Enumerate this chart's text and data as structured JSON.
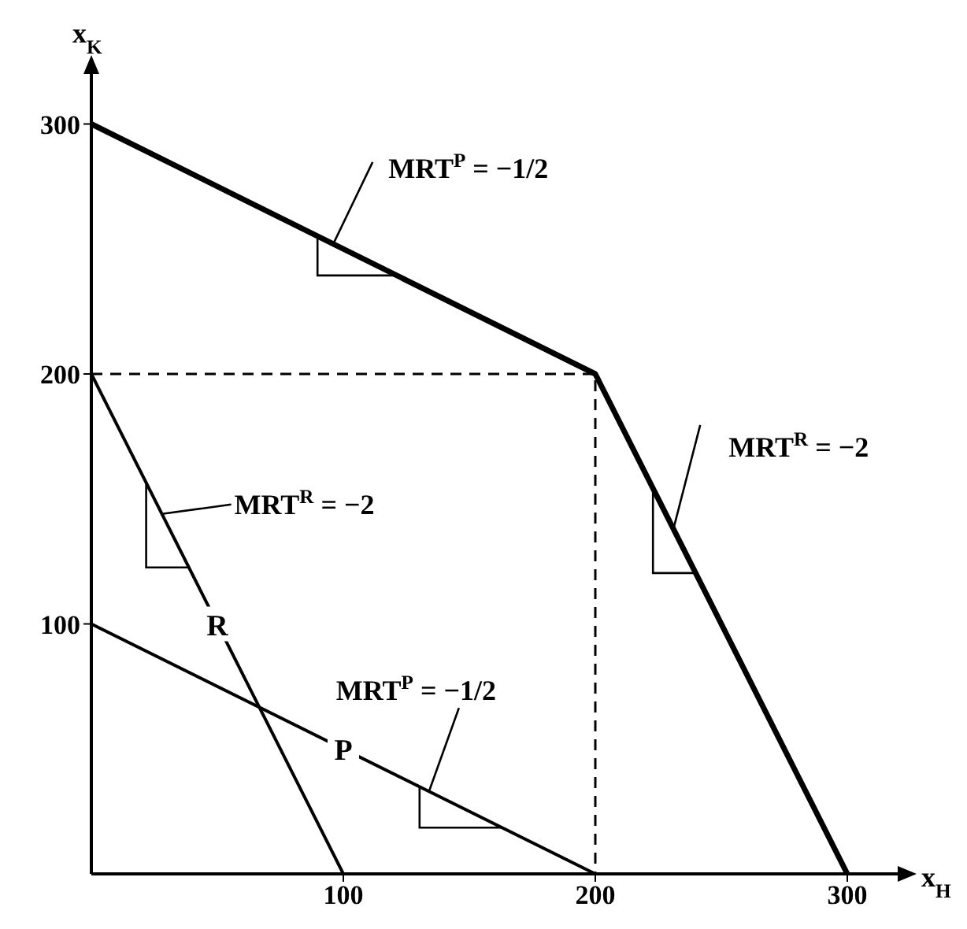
{
  "chart_data": {
    "type": "line",
    "xlabel": "x$_{H}$",
    "ylabel": "x$_{K}$",
    "xlim": [
      0,
      320
    ],
    "ylim": [
      0,
      320
    ],
    "xticks": [
      100,
      200,
      300
    ],
    "yticks": [
      100,
      200,
      300
    ],
    "marker": "none",
    "series": [
      {
        "color": "#000000",
        "x": [
          0,
          200,
          300
        ],
        "values": [
          300,
          200,
          0
        ]
      },
      {
        "name": "R",
        "color": "#000000",
        "x": [
          0,
          100
        ],
        "values": [
          200,
          0
        ]
      },
      {
        "name": "P",
        "color": "#000000",
        "x": [
          0,
          200
        ],
        "values": [
          100,
          0
        ]
      },
      {
        "color": "#000000",
        "line_style": "dashed",
        "x": [
          0,
          200,
          200
        ],
        "values": [
          200,
          200,
          0
        ]
      }
    ],
    "annotations": [
      {
        "text": "MRT$^{P}$ = −1/2",
        "x": 96,
        "y": 252
      },
      {
        "text": "MRT$^{R}$ = −2",
        "x": 231,
        "y": 138
      },
      {
        "text": "MRT$^{R}$ = −2",
        "x": 28,
        "y": 144
      },
      {
        "text": "MRT$^{P}$ = −1/2",
        "x": 134,
        "y": 33
      }
    ]
  }
}
